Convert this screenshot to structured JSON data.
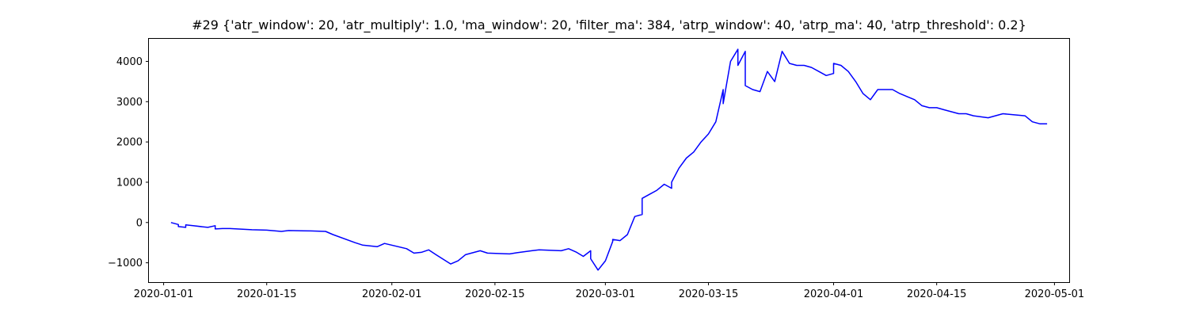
{
  "chart_data": {
    "type": "line",
    "title": "#29 {'atr_window': 20, 'atr_multiply': 1.0, 'ma_window': 20, 'filter_ma': 384, 'atrp_window': 40, 'atrp_ma': 40, 'atrp_threshold': 0.2}",
    "xlabel": "",
    "ylabel": "",
    "xlim": [
      "2019-12-30",
      "2020-05-03"
    ],
    "ylim": [
      -1480,
      4560
    ],
    "grid": false,
    "x_ticks": [
      "2020-01-01",
      "2020-01-15",
      "2020-02-01",
      "2020-02-15",
      "2020-03-01",
      "2020-03-15",
      "2020-04-01",
      "2020-04-15",
      "2020-05-01"
    ],
    "y_ticks": [
      -1000,
      0,
      1000,
      2000,
      3000,
      4000
    ],
    "y_tick_labels": [
      "−1000",
      "0",
      "1000",
      "2000",
      "3000",
      "4000"
    ],
    "series": [
      {
        "color": "#0000ff",
        "x": [
          "2020-01-02",
          "2020-01-03",
          "2020-01-03",
          "2020-01-04",
          "2020-01-04",
          "2020-01-05",
          "2020-01-07",
          "2020-01-08",
          "2020-01-08",
          "2020-01-09",
          "2020-01-10",
          "2020-01-13",
          "2020-01-15",
          "2020-01-17",
          "2020-01-18",
          "2020-01-21",
          "2020-01-23",
          "2020-01-24",
          "2020-01-27",
          "2020-01-28",
          "2020-01-30",
          "2020-01-31",
          "2020-02-03",
          "2020-02-04",
          "2020-02-05",
          "2020-02-06",
          "2020-02-07",
          "2020-02-09",
          "2020-02-10",
          "2020-02-11",
          "2020-02-13",
          "2020-02-14",
          "2020-02-17",
          "2020-02-18",
          "2020-02-20",
          "2020-02-21",
          "2020-02-24",
          "2020-02-25",
          "2020-02-26",
          "2020-02-27",
          "2020-02-28",
          "2020-02-28",
          "2020-02-29",
          "2020-03-01",
          "2020-03-02",
          "2020-03-02",
          "2020-03-03",
          "2020-03-04",
          "2020-03-05",
          "2020-03-06",
          "2020-03-06",
          "2020-03-07",
          "2020-03-08",
          "2020-03-09",
          "2020-03-10",
          "2020-03-10",
          "2020-03-11",
          "2020-03-12",
          "2020-03-13",
          "2020-03-14",
          "2020-03-15",
          "2020-03-16",
          "2020-03-17",
          "2020-03-17",
          "2020-03-18",
          "2020-03-19",
          "2020-03-19",
          "2020-03-20",
          "2020-03-20",
          "2020-03-21",
          "2020-03-22",
          "2020-03-23",
          "2020-03-24",
          "2020-03-25",
          "2020-03-26",
          "2020-03-27",
          "2020-03-28",
          "2020-03-29",
          "2020-03-30",
          "2020-03-31",
          "2020-04-01",
          "2020-04-01",
          "2020-04-02",
          "2020-04-03",
          "2020-04-04",
          "2020-04-05",
          "2020-04-06",
          "2020-04-07",
          "2020-04-08",
          "2020-04-09",
          "2020-04-10",
          "2020-04-12",
          "2020-04-13",
          "2020-04-14",
          "2020-04-15",
          "2020-04-16",
          "2020-04-17",
          "2020-04-18",
          "2020-04-19",
          "2020-04-20",
          "2020-04-22",
          "2020-04-24",
          "2020-04-27",
          "2020-04-28",
          "2020-04-29",
          "2020-04-30"
        ],
        "y": [
          0,
          -50,
          -100,
          -120,
          -60,
          -80,
          -120,
          -80,
          -160,
          -150,
          -150,
          -180,
          -190,
          -220,
          -200,
          -210,
          -220,
          -300,
          -500,
          -560,
          -600,
          -520,
          -650,
          -760,
          -740,
          -680,
          -800,
          -1030,
          -950,
          -800,
          -700,
          -760,
          -780,
          -750,
          -700,
          -680,
          -700,
          -650,
          -730,
          -840,
          -700,
          -900,
          -1180,
          -950,
          -470,
          -420,
          -450,
          -300,
          150,
          200,
          600,
          700,
          800,
          950,
          850,
          1000,
          1350,
          1600,
          1750,
          2000,
          2200,
          2500,
          3300,
          2950,
          4000,
          4300,
          3900,
          4250,
          3400,
          3300,
          3250,
          3750,
          3500,
          4250,
          3950,
          3900,
          3900,
          3850,
          3750,
          3650,
          3700,
          3950,
          3900,
          3750,
          3500,
          3200,
          3050,
          3300,
          3300,
          3300,
          3200,
          3050,
          2900,
          2850,
          2850,
          2800,
          2750,
          2700,
          2700,
          2650,
          2600,
          2700,
          2650,
          2500,
          2450,
          2450
        ]
      }
    ]
  }
}
